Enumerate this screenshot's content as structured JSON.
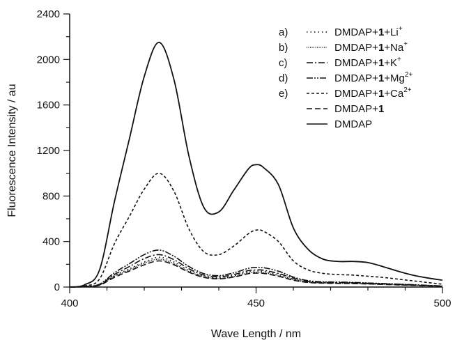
{
  "chart_data": {
    "type": "line",
    "title": "",
    "xlabel": "Wave Length / nm",
    "ylabel": "Fluorescence Intensity / au",
    "xlim": [
      400,
      500
    ],
    "ylim": [
      0,
      2400
    ],
    "x_ticks": [
      400,
      450,
      500
    ],
    "y_ticks": [
      0,
      400,
      800,
      1200,
      1600,
      2000,
      2400
    ],
    "x_tick_labels": [
      "400",
      "450",
      "500"
    ],
    "y_tick_labels": [
      "0",
      "400",
      "800",
      "1200",
      "1600",
      "2000",
      "2400"
    ],
    "grid": false,
    "legend_position": "top-right",
    "x": [
      400,
      404,
      408,
      412,
      416,
      420,
      424,
      428,
      432,
      436,
      440,
      444,
      448,
      450,
      452,
      456,
      460,
      464,
      468,
      472,
      476,
      480,
      484,
      488,
      492,
      496,
      500
    ],
    "series": [
      {
        "prefix": "a)",
        "name": "DMDAP+1+Li+",
        "dash": "1.5,4",
        "values": [
          0,
          3,
          20,
          100,
          160,
          220,
          262,
          220,
          145,
          95,
          80,
          100,
          135,
          140,
          138,
          110,
          70,
          45,
          38,
          36,
          34,
          30,
          26,
          22,
          17,
          12,
          8
        ]
      },
      {
        "prefix": "b)",
        "name": "DMDAP+1+Na+",
        "dash": "1,1.5",
        "values": [
          0,
          3,
          18,
          95,
          150,
          210,
          245,
          205,
          135,
          90,
          75,
          92,
          125,
          130,
          128,
          100,
          64,
          42,
          36,
          34,
          32,
          28,
          24,
          20,
          16,
          11,
          7
        ]
      },
      {
        "prefix": "c)",
        "name": "DMDAP+1+K+",
        "dash": "9,3,2,3",
        "values": [
          0,
          4,
          22,
          110,
          180,
          250,
          285,
          240,
          160,
          105,
          90,
          110,
          145,
          150,
          148,
          120,
          78,
          50,
          42,
          40,
          37,
          33,
          28,
          24,
          19,
          14,
          9
        ]
      },
      {
        "prefix": "d)",
        "name": "DMDAP+1+Mg2+",
        "dash": "9,2,2,2,2,2",
        "values": [
          0,
          5,
          25,
          125,
          205,
          285,
          325,
          270,
          180,
          118,
          100,
          125,
          165,
          172,
          170,
          140,
          88,
          56,
          46,
          44,
          41,
          36,
          31,
          26,
          21,
          15,
          10
        ]
      },
      {
        "prefix": "e)",
        "name": "DMDAP+1+Ca2+",
        "dash": "4,3",
        "values": [
          0,
          10,
          70,
          380,
          620,
          860,
          1000,
          840,
          510,
          310,
          285,
          360,
          470,
          500,
          490,
          400,
          230,
          150,
          120,
          110,
          105,
          95,
          85,
          70,
          55,
          40,
          25
        ]
      },
      {
        "prefix": "",
        "name": "DMDAP+1",
        "dash": "8,4",
        "values": [
          0,
          3,
          16,
          85,
          140,
          195,
          230,
          195,
          130,
          85,
          72,
          88,
          118,
          122,
          120,
          95,
          60,
          40,
          34,
          32,
          30,
          27,
          23,
          19,
          15,
          10,
          6
        ]
      },
      {
        "prefix": "",
        "name": "DMDAP",
        "dash": "",
        "values": [
          0,
          20,
          150,
          750,
          1300,
          1850,
          2150,
          1820,
          1150,
          700,
          660,
          850,
          1040,
          1075,
          1050,
          900,
          520,
          330,
          245,
          225,
          225,
          215,
          180,
          140,
          105,
          80,
          60
        ]
      }
    ]
  }
}
